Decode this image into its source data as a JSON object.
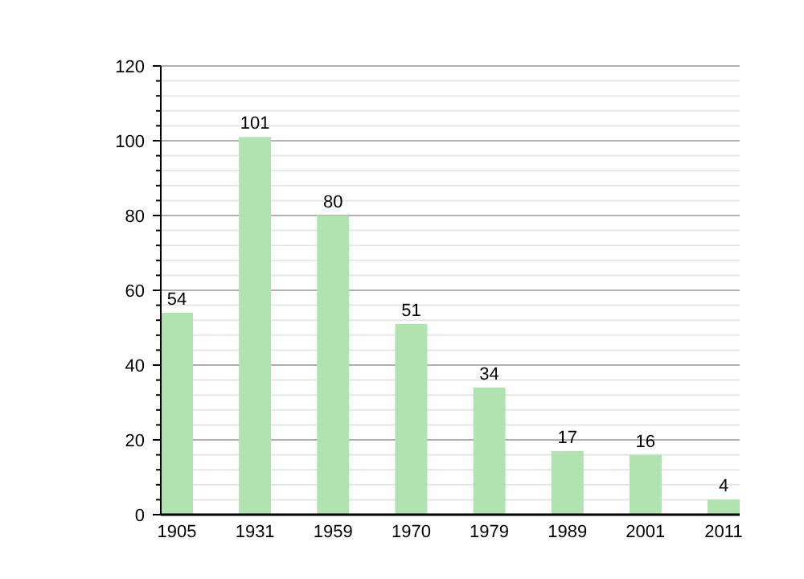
{
  "chart_data": {
    "type": "bar",
    "categories": [
      "1905",
      "1931",
      "1959",
      "1970",
      "1979",
      "1989",
      "2001",
      "2011"
    ],
    "values": [
      54,
      101,
      80,
      51,
      34,
      17,
      16,
      4
    ],
    "color": "#b0e3b0",
    "data_labels": true,
    "grid": "y",
    "ylim": [
      0,
      120
    ],
    "yticks": [
      0,
      {
        "value": 4,
        "label": null
      },
      {
        "value": 8,
        "label": null
      },
      {
        "value": 12,
        "label": null
      },
      {
        "value": 16,
        "label": null
      },
      20,
      {
        "value": 24,
        "label": null
      },
      {
        "value": 28,
        "label": null
      },
      {
        "value": 32,
        "label": null
      },
      {
        "value": 36,
        "label": null
      },
      40,
      {
        "value": 44,
        "label": null
      },
      {
        "value": 48,
        "label": null
      },
      {
        "value": 52,
        "label": null
      },
      {
        "value": 56,
        "label": null
      },
      60,
      {
        "value": 64,
        "label": null
      },
      {
        "value": 68,
        "label": null
      },
      {
        "value": 72,
        "label": null
      },
      {
        "value": 76,
        "label": null
      },
      80,
      {
        "value": 84,
        "label": null
      },
      {
        "value": 88,
        "label": null
      },
      {
        "value": 92,
        "label": null
      },
      {
        "value": 96,
        "label": null
      },
      100,
      {
        "value": 104,
        "label": null
      },
      {
        "value": 108,
        "label": null
      },
      {
        "value": 112,
        "label": null
      },
      {
        "value": 116,
        "label": null
      },
      120
    ]
  }
}
